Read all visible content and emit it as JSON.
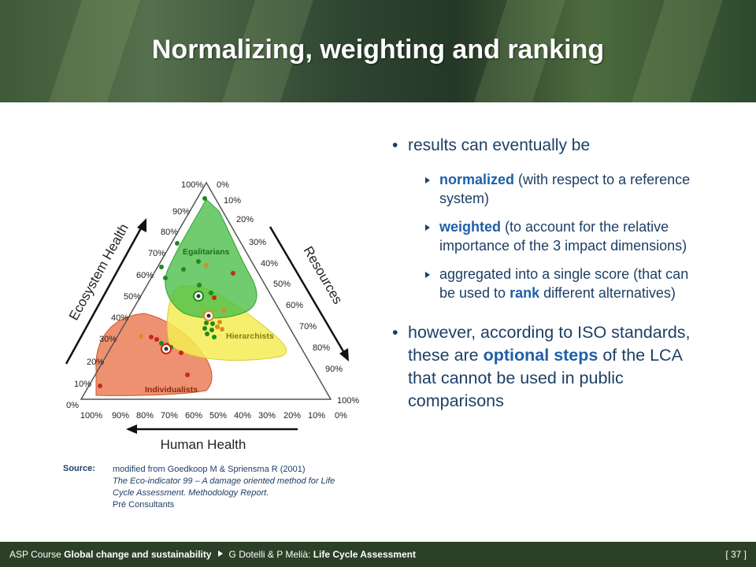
{
  "title": "Normalizing, weighting and ranking",
  "diagram": {
    "top_labels": [
      "100%",
      "0%"
    ],
    "left_ticks": [
      "90%",
      "80%",
      "70%",
      "60%",
      "50%",
      "40%",
      "30%",
      "20%",
      "10%",
      "0%"
    ],
    "right_ticks": [
      "10%",
      "20%",
      "30%",
      "40%",
      "50%",
      "60%",
      "70%",
      "80%",
      "90%",
      "100%"
    ],
    "bottom_ticks": [
      "100%",
      "90%",
      "80%",
      "70%",
      "60%",
      "50%",
      "40%",
      "30%",
      "20%",
      "10%",
      "0%"
    ],
    "axis_ecosystem": "Ecosystem Health",
    "axis_resources": "Resources",
    "axis_human": "Human Health",
    "region_egalitarians": "Egalitarians",
    "region_hierarchists": "Hierarchists",
    "region_individualists": "Individualists",
    "colors": {
      "egalitarians": "#4cbf4a",
      "hierarchists": "#f4ec55",
      "individualists": "#e8673a",
      "green_dot": "#1e8a1e",
      "orange_dot": "#d98c20",
      "red_dot": "#c8281a"
    }
  },
  "bullets": {
    "b1": "results can eventually be",
    "s1_kw": "normalized",
    "s1_rest": " (with respect to a reference system)",
    "s2_kw": "weighted",
    "s2_rest": " (to account for the relative importance of the 3 impact dimensions)",
    "s3_pre": "aggregated into a single score (that can be used to ",
    "s3_kw": "rank",
    "s3_rest": " different alternatives)",
    "b2_pre": "however, according to ISO standards, these are ",
    "b2_kw": "optional steps",
    "b2_rest": " of the LCA that cannot be used in public comparisons"
  },
  "source": {
    "label": "Source:",
    "line1": "modified from Goedkoop M & Spriensma R (2001)",
    "line2": "The Eco-indicator 99 – A damage oriented method for Life Cycle Assessment. Methodology Report.",
    "line3": "Pré Consultants"
  },
  "footer": {
    "prefix": "ASP Course ",
    "course": "Global change and sustainability",
    "authors": "G Dotelli & P Melià: ",
    "subject": "Life Cycle Assessment",
    "page": "[ 37 ]"
  }
}
